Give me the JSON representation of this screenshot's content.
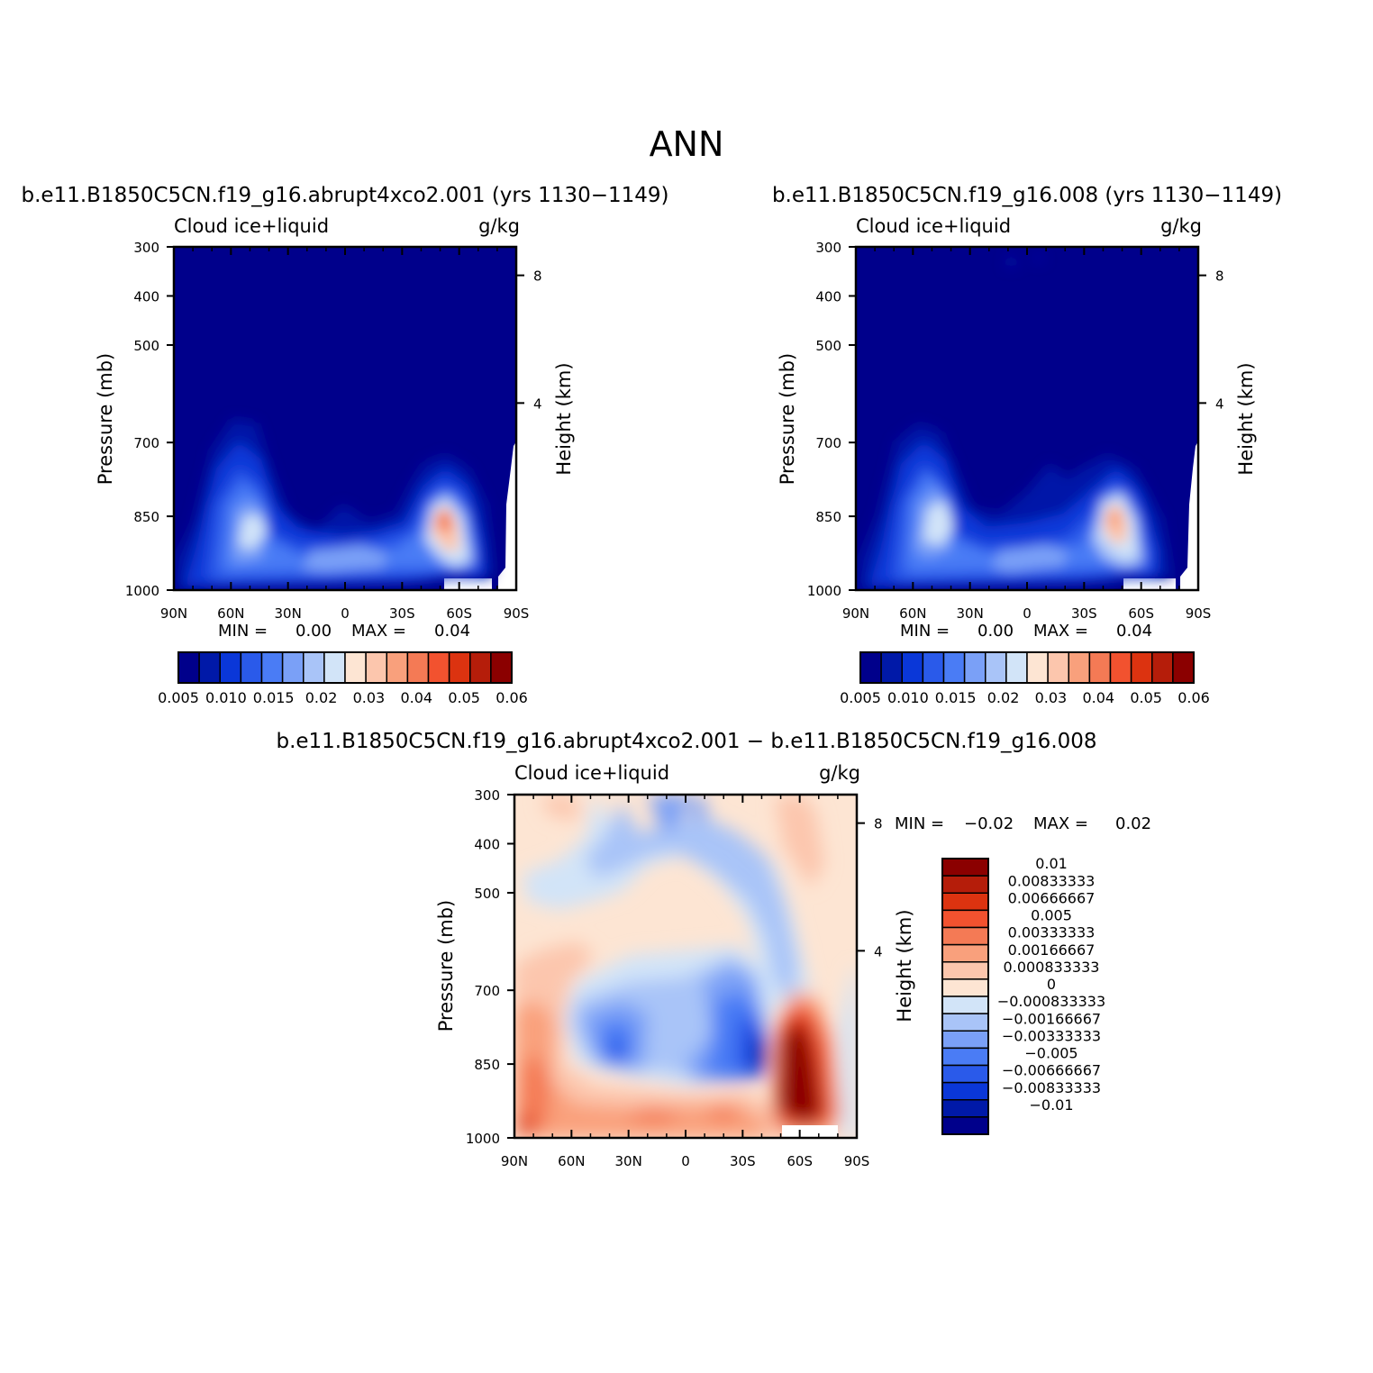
{
  "main_title": "ANN",
  "stat_labels": {
    "min": "MIN =",
    "max": "MAX ="
  },
  "chart_data": [
    {
      "type": "heatmap",
      "title": "b.e11.B1850C5CN.f19_g16.abrupt4xco2.001 (yrs 1130−1149)",
      "left_label": "Cloud ice+liquid",
      "units": "g/kg",
      "ylabel": "Pressure (mb)",
      "ylabel_right": "Height (km)",
      "xlim": [
        -90,
        90
      ],
      "x_ticks": [
        "90N",
        "60N",
        "30N",
        "0",
        "30S",
        "60S",
        "90S"
      ],
      "y_ticks": [
        "300",
        "400",
        "500",
        "700",
        "850",
        "1000"
      ],
      "ylim": [
        300,
        1000
      ],
      "y_right_ticks": [
        "8",
        "4"
      ],
      "min": "0.00",
      "max": "0.04",
      "colorbar": {
        "orientation": "horizontal",
        "labels": [
          "0.005",
          "0.010",
          "0.015",
          "0.02",
          "0.03",
          "0.04",
          "0.05",
          "0.06"
        ],
        "colors": [
          "#00008b",
          "#0019a8",
          "#0a37d8",
          "#2a5aea",
          "#4a7cf5",
          "#7aa0f7",
          "#a9c4f8",
          "#d2e4f8",
          "#fde5d3",
          "#fcc6ad",
          "#f9a07c",
          "#f47a55",
          "#f2522f",
          "#dc3310",
          "#b51d0a",
          "#8b0000"
        ]
      },
      "features": [
        {
          "lat": -45,
          "p": 870,
          "value": 0.022
        },
        {
          "lat": -50,
          "p": 860,
          "value": 0.04
        },
        {
          "lat": 45,
          "p": 870,
          "value": 0.02
        },
        {
          "lat": 10,
          "p": 930,
          "value": 0.014
        }
      ]
    },
    {
      "type": "heatmap",
      "title": "b.e11.B1850C5CN.f19_g16.008 (yrs 1130−1149)",
      "left_label": "Cloud ice+liquid",
      "units": "g/kg",
      "ylabel": "Pressure (mb)",
      "ylabel_right": "Height (km)",
      "xlim": [
        -90,
        90
      ],
      "x_ticks": [
        "90N",
        "60N",
        "30N",
        "0",
        "30S",
        "60S",
        "90S"
      ],
      "y_ticks": [
        "300",
        "400",
        "500",
        "700",
        "850",
        "1000"
      ],
      "ylim": [
        300,
        1000
      ],
      "y_right_ticks": [
        "8",
        "4"
      ],
      "min": "0.00",
      "max": "0.04",
      "colorbar": {
        "orientation": "horizontal",
        "labels": [
          "0.005",
          "0.010",
          "0.015",
          "0.02",
          "0.03",
          "0.04",
          "0.05",
          "0.06"
        ],
        "colors": [
          "#00008b",
          "#0019a8",
          "#0a37d8",
          "#2a5aea",
          "#4a7cf5",
          "#7aa0f7",
          "#a9c4f8",
          "#d2e4f8",
          "#fde5d3",
          "#fcc6ad",
          "#f9a07c",
          "#f47a55",
          "#f2522f",
          "#dc3310",
          "#b51d0a",
          "#8b0000"
        ]
      }
    },
    {
      "type": "heatmap",
      "title": "b.e11.B1850C5CN.f19_g16.abrupt4xco2.001 − b.e11.B1850C5CN.f19_g16.008",
      "left_label": "Cloud ice+liquid",
      "units": "g/kg",
      "ylabel": "Pressure (mb)",
      "ylabel_right": "Height (km)",
      "xlim": [
        -90,
        90
      ],
      "x_ticks": [
        "90N",
        "60N",
        "30N",
        "0",
        "30S",
        "60S",
        "90S"
      ],
      "y_ticks": [
        "300",
        "400",
        "500",
        "700",
        "850",
        "1000"
      ],
      "ylim": [
        300,
        1000
      ],
      "y_right_ticks": [
        "8",
        "4"
      ],
      "min": "−0.02",
      "max": "0.02",
      "colorbar": {
        "orientation": "vertical",
        "labels": [
          "0.01",
          "0.00833333",
          "0.00666667",
          "0.005",
          "0.00333333",
          "0.00166667",
          "0.000833333",
          "0",
          "−0.000833333",
          "−0.00166667",
          "−0.00333333",
          "−0.005",
          "−0.00666667",
          "−0.00833333",
          "−0.01"
        ],
        "colors": [
          "#8b0000",
          "#b51d0a",
          "#dc3310",
          "#f2522f",
          "#f47a55",
          "#f9a07c",
          "#fcc6ad",
          "#fde5d3",
          "#d2e4f8",
          "#a9c4f8",
          "#7aa0f7",
          "#4a7cf5",
          "#2a5aea",
          "#0a37d8",
          "#0019a8",
          "#00008b"
        ]
      }
    }
  ]
}
